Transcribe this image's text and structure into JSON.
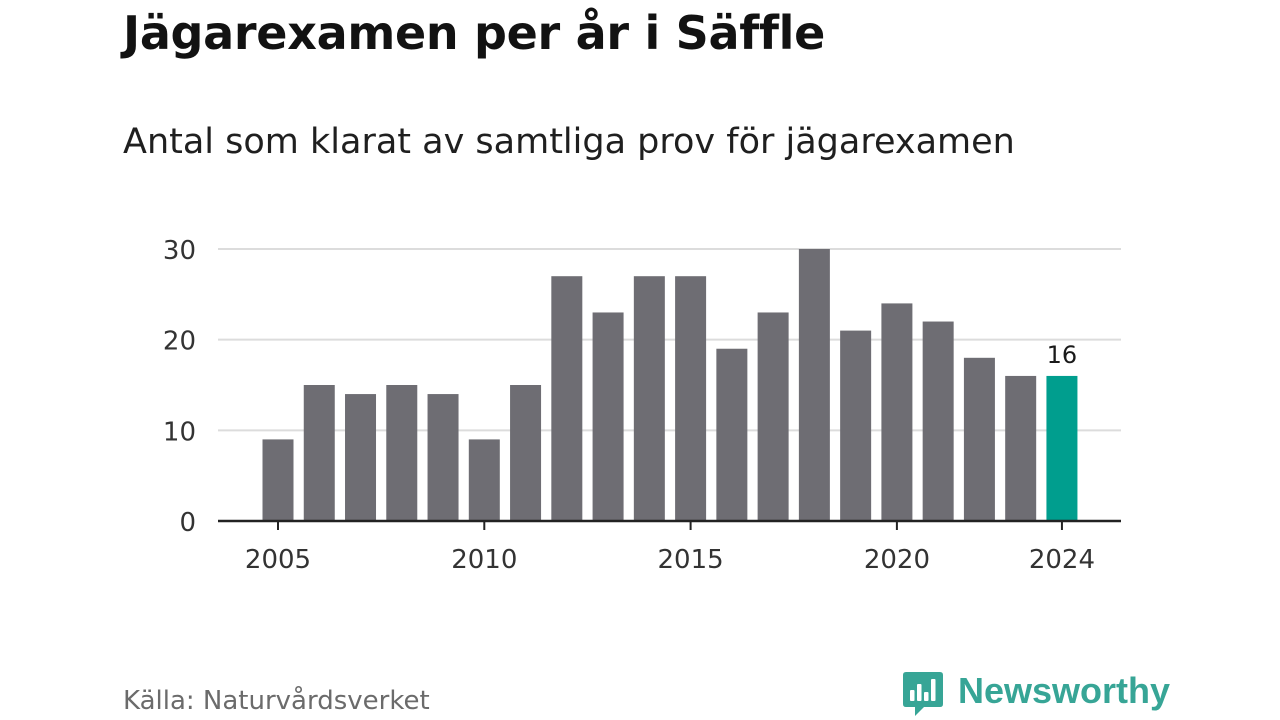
{
  "title": "Jägarexamen per år i Säffle",
  "subtitle": "Antal som klarat av samtliga prov för jägarexamen",
  "source": "Källa: Naturvårdsverket",
  "brand": {
    "name": "Newsworthy",
    "logo_icon": "chat-bars-icon",
    "color": "#37a596"
  },
  "colors": {
    "bar": "#6e6d73",
    "highlight": "#009e8e",
    "grid": "#dcdcdc",
    "axis": "#222222",
    "tick_text": "#333333"
  },
  "chart_data": {
    "type": "bar",
    "x": [
      2005,
      2006,
      2007,
      2008,
      2009,
      2010,
      2011,
      2012,
      2013,
      2014,
      2015,
      2016,
      2017,
      2018,
      2019,
      2020,
      2021,
      2022,
      2023,
      2024
    ],
    "values": [
      9,
      15,
      14,
      15,
      14,
      9,
      15,
      27,
      23,
      27,
      27,
      19,
      23,
      30,
      21,
      24,
      22,
      18,
      16,
      16
    ],
    "highlight_x": 2024,
    "highlight_label": "16",
    "title": "Jägarexamen per år i Säffle",
    "subtitle": "Antal som klarat av samtliga prov för jägarexamen",
    "xlabel": "",
    "ylabel": "",
    "ylim": [
      0,
      30
    ],
    "yticks": [
      "0",
      "10",
      "20",
      "30"
    ],
    "xticks": [
      "2005",
      "2010",
      "2015",
      "2020",
      "2024"
    ],
    "grid": "horizontal",
    "legend": "none"
  }
}
